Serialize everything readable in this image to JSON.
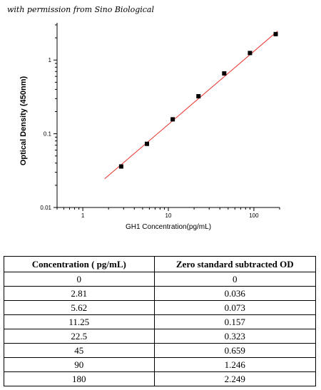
{
  "watermark": "with permission from Sino Biological",
  "chart_data": {
    "type": "scatter",
    "xscale": "log",
    "yscale": "log",
    "xlim": [
      0.5,
      200
    ],
    "ylim": [
      0.01,
      3.2
    ],
    "x_ticks": [
      1,
      10,
      100
    ],
    "x_tick_labels": [
      "1",
      "10",
      "100"
    ],
    "y_ticks": [
      0.01,
      0.1,
      1
    ],
    "y_tick_labels": [
      "0.01",
      "0.1",
      "1"
    ],
    "xlabel": "GH1  Concentration(pg/mL)",
    "ylabel": "Optical Density (450nm)",
    "series": [
      {
        "x": [
          2.81,
          5.62,
          11.25,
          22.5,
          45,
          90,
          180
        ],
        "y": [
          0.036,
          0.073,
          0.157,
          0.323,
          0.659,
          1.246,
          2.249
        ],
        "color": "#000000",
        "marker": "square"
      }
    ],
    "fit_line": {
      "x": [
        1.8,
        190
      ],
      "y": [
        0.0245,
        2.48
      ],
      "color": "#e8302a"
    }
  },
  "table": {
    "headers": [
      "Concentration ( pg/mL)",
      "Zero standard subtracted OD"
    ],
    "rows": [
      [
        "0",
        "0"
      ],
      [
        "2.81",
        "0.036"
      ],
      [
        "5.62",
        "0.073"
      ],
      [
        "11.25",
        "0.157"
      ],
      [
        "22.5",
        "0.323"
      ],
      [
        "45",
        "0.659"
      ],
      [
        "90",
        "1.246"
      ],
      [
        "180",
        "2.249"
      ]
    ]
  }
}
